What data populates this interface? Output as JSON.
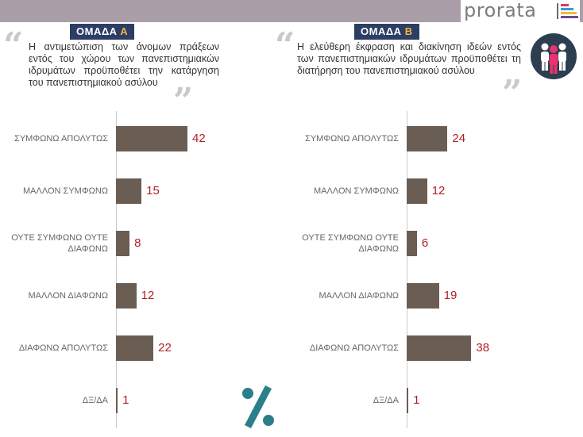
{
  "brand": {
    "name": "prorata",
    "bar_colors": [
      "#e8336e",
      "#2f9fd6",
      "#f4b63d",
      "#6b4a8e"
    ]
  },
  "groups": [
    {
      "label_prefix": "ΟΜΑΔΑ ",
      "label_letter": "Α",
      "statement": "Η αντιμετώπιση των άνομων πράξεων εντός του χώρου των πανεπιστημιακών ιδρυμάτων προϋποθέτει την κατάργηση του πανεπιστημιακού ασύλου"
    },
    {
      "label_prefix": "ΟΜΑΔΑ ",
      "label_letter": "Β",
      "statement": "Η ελεύθερη έκφραση και διακίνηση ιδεών εντός των πανεπιστημιακών ιδρυμάτων προϋποθέτει τη διατήρηση του πανεπιστημιακού ασύλου"
    }
  ],
  "percent_symbol": "%",
  "colors": {
    "bar": "#6a5d53",
    "value": "#b21e24",
    "label_bg": "#2c3e63",
    "label_letter": "#f4b63d",
    "topbar": "#aa9fa8"
  },
  "chart_data": [
    {
      "type": "bar",
      "orientation": "horizontal",
      "categories": [
        "ΣΥΜΦΩΝΩ ΑΠΟΛΥΤΩΣ",
        "ΜΑΛΛΟΝ ΣΥΜΦΩΝΩ",
        "ΟΥΤΕ ΣΥΜΦΩΝΩ ΟΥΤΕ ΔΙΑΦΩΝΩ",
        "ΜΑΛΛΟΝ ΔΙΑΦΩΝΩ",
        "ΔΙΑΦΩΝΩ ΑΠΟΛΥΤΩΣ",
        "ΔΞ/ΔΑ"
      ],
      "values": [
        42,
        15,
        8,
        12,
        22,
        1
      ],
      "unit": "%",
      "xlim": [
        0,
        100
      ]
    },
    {
      "type": "bar",
      "orientation": "horizontal",
      "categories": [
        "ΣΥΜΦΩΝΩ ΑΠΟΛΥΤΩΣ",
        "ΜΑΛΛΟΝ ΣΥΜΦΩΝΩ",
        "ΟΥΤΕ ΣΥΜΦΩΝΩ ΟΥΤΕ ΔΙΑΦΩΝΩ",
        "ΜΑΛΛΟΝ ΔΙΑΦΩΝΩ",
        "ΔΙΑΦΩΝΩ ΑΠΟΛΥΤΩΣ",
        "ΔΞ/ΔΑ"
      ],
      "values": [
        24,
        12,
        6,
        19,
        38,
        1
      ],
      "unit": "%",
      "xlim": [
        0,
        100
      ]
    }
  ]
}
